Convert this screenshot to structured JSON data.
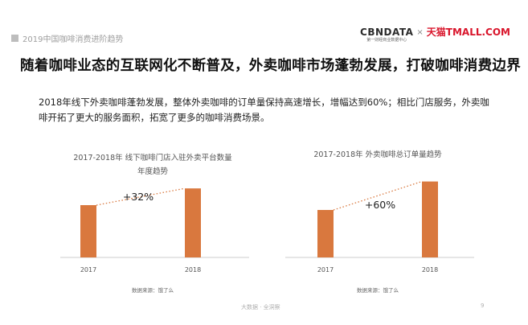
{
  "header": {
    "section_title": "2019中国咖啡消费进阶趋势",
    "logo_cbn": "CBNDATA",
    "logo_cbn_sub": "第一财经商业数据中心",
    "logo_times": "×",
    "logo_tmall": "天猫TMALL.COM"
  },
  "headline": "随着咖啡业态的互联网化不断普及，外卖咖啡市场蓬勃发展，打破咖啡消费边界",
  "description": "2018年线下外卖咖啡蓬勃发展，整体外卖咖啡的订单量保持高速增长，增幅达到60%；相比门店服务，外卖咖啡开拓了更大的服务面积，拓宽了更多的咖啡消费场景。",
  "colors": {
    "bar": "#d9783e",
    "dotted_line": "#d9783e",
    "axis": "#cccccc"
  },
  "chart_data": [
    {
      "type": "bar",
      "title_lines": [
        "2017-2018年 线下咖啡门店入驻外卖平台数量",
        "年度趋势"
      ],
      "categories": [
        "2017",
        "2018"
      ],
      "values": [
        1,
        1.32
      ],
      "annotation": "+32%",
      "source": "数据来源：饿了么"
    },
    {
      "type": "bar",
      "title_lines": [
        "2017-2018年 外卖咖啡总订单量趋势"
      ],
      "categories": [
        "2017",
        "2018"
      ],
      "values": [
        1,
        1.6
      ],
      "annotation": "+60%",
      "source": "数据来源：饿了么"
    }
  ],
  "footer": {
    "text": "大数据 · 全洞察",
    "page": "9"
  }
}
